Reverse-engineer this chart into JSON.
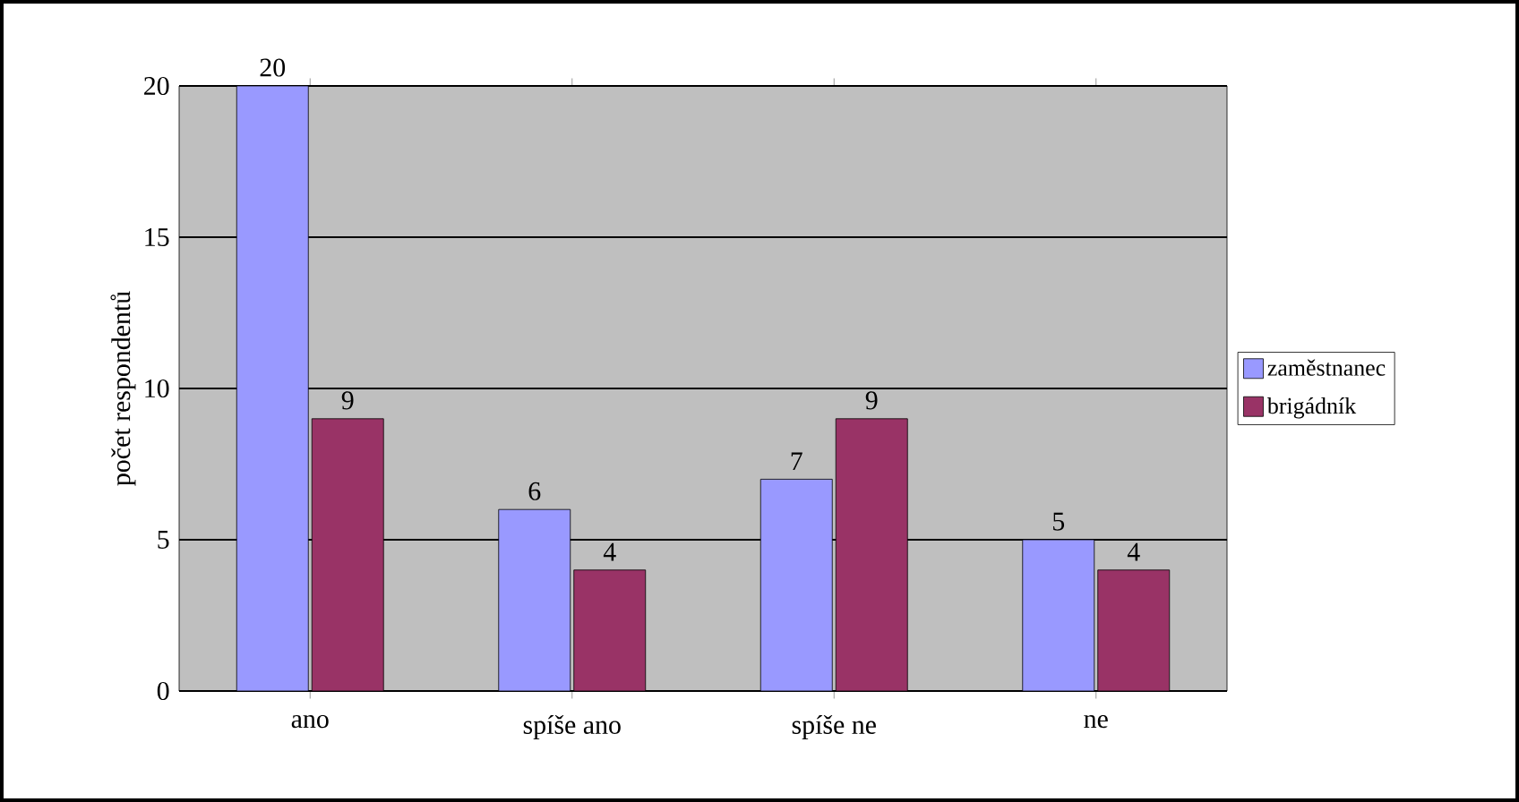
{
  "chart_data": {
    "type": "bar",
    "ylabel": "počet respondentů",
    "categories": [
      "ano",
      "spíše ano",
      "spíše ne",
      "ne"
    ],
    "series": [
      {
        "name": "zaměstnanec",
        "color": "#9999ff",
        "values": [
          20,
          6,
          7,
          5
        ]
      },
      {
        "name": "brigádník",
        "color": "#993366",
        "values": [
          9,
          4,
          9,
          4
        ]
      }
    ],
    "ylim": [
      0,
      20
    ],
    "yticks": [
      0,
      5,
      10,
      15,
      20
    ],
    "grid": "y",
    "legend": "right",
    "data_labels": true
  }
}
